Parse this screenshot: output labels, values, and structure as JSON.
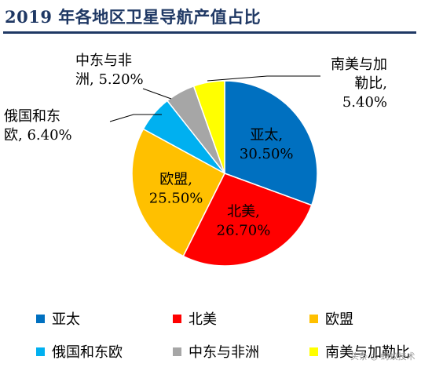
{
  "title": "2019 年各地区卫星导航产值占比",
  "colors": {
    "title": "#1f3864",
    "slices": [
      "#0070c0",
      "#ff0000",
      "#ffc000",
      "#00b0f0",
      "#a6a6a6",
      "#ffff00"
    ]
  },
  "chart_data": {
    "type": "pie",
    "title": "2019 年各地区卫星导航产值占比",
    "categories": [
      "亚太",
      "北美",
      "欧盟",
      "俄国和东欧",
      "中东与非洲",
      "南美与加勒比"
    ],
    "values": [
      30.5,
      26.7,
      25.5,
      6.4,
      5.2,
      5.4
    ],
    "unit": "%",
    "start_angle": "12 o'clock, clockwise",
    "legend_position": "bottom",
    "data_labels": [
      [
        "亚太,",
        "30.50%"
      ],
      [
        "北美,",
        "26.70%"
      ],
      [
        "欧盟,",
        "25.50%"
      ],
      [
        "俄国和东",
        "欧, 6.40%"
      ],
      [
        "中东与非",
        "洲, 5.20%"
      ],
      [
        "南美与加",
        "勒比,",
        "5.40%"
      ]
    ]
  },
  "legend": [
    {
      "label": "亚太",
      "color": "#0070c0"
    },
    {
      "label": "北美",
      "color": "#ff0000"
    },
    {
      "label": "欧盟",
      "color": "#ffc000"
    },
    {
      "label": "俄国和东欧",
      "color": "#00b0f0"
    },
    {
      "label": "中东与非洲",
      "color": "#a6a6a6"
    },
    {
      "label": "南美与加勒比",
      "color": "#ffff00"
    }
  ],
  "watermark": "头条 ◎ 蚂蚁技术"
}
